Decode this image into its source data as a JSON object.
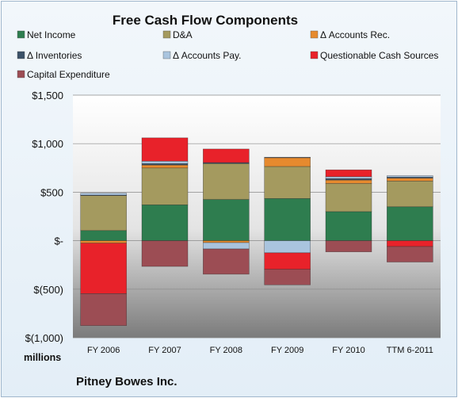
{
  "chart_data": {
    "type": "bar",
    "stacked": true,
    "title": "Free Cash Flow Components",
    "unit_label": "millions",
    "company": "Pitney Bowes Inc.",
    "categories": [
      "FY 2006",
      "FY 2007",
      "FY 2008",
      "FY 2009",
      "FY 2010",
      "TTM 6-2011"
    ],
    "ylim": [
      -1000,
      1500
    ],
    "yticks": [
      {
        "value": 1500,
        "label": "$1,500"
      },
      {
        "value": 1000,
        "label": "$1,000"
      },
      {
        "value": 500,
        "label": "$500"
      },
      {
        "value": 0,
        "label": "$-"
      },
      {
        "value": -500,
        "label": "$(500)"
      },
      {
        "value": -1000,
        "label": "$(1,000)"
      }
    ],
    "grid": true,
    "legend_position": "top",
    "series": [
      {
        "name": "Net Income",
        "color": "#2e7d4f",
        "values": [
          105,
          370,
          425,
          435,
          300,
          350
        ]
      },
      {
        "name": "D&A",
        "color": "#a49a5f",
        "values": [
          360,
          380,
          370,
          330,
          290,
          265
        ]
      },
      {
        "name": "Δ Accounts Rec.",
        "color": "#e68a2e",
        "values": [
          -25,
          30,
          -20,
          90,
          35,
          30
        ]
      },
      {
        "name": "Δ Inventories",
        "color": "#3b5168",
        "values": [
          5,
          15,
          10,
          5,
          15,
          10
        ]
      },
      {
        "name": "Δ Accounts Pay.",
        "color": "#a9c4de",
        "values": [
          20,
          25,
          -65,
          -125,
          20,
          15
        ]
      },
      {
        "name": "Questionable Cash Sources",
        "color": "#e8222a",
        "values": [
          -520,
          240,
          140,
          -170,
          70,
          -60
        ]
      },
      {
        "name": "Capital Expenditure",
        "color": "#9c4d54",
        "values": [
          -330,
          -265,
          -260,
          -160,
          -115,
          -160
        ]
      }
    ]
  }
}
